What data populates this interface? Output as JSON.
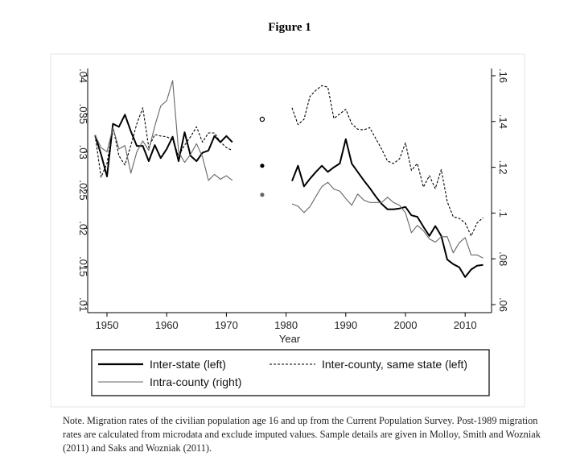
{
  "title": "Figure 1",
  "note": "Note. Migration rates of the civilian population age 16 and up from the Current Population Survey. Post-1989 migration rates are calculated from microdata and exclude imputed values. Sample details are given in Molloy, Smith and Wozniak (2011) and Saks and Wozniak (2011).",
  "chart_data": {
    "type": "line",
    "xlabel": "Year",
    "ylabel_left": "",
    "ylabel_right": "",
    "xlim": [
      1946.8,
      2014.5
    ],
    "ylim_left": [
      0.01,
      0.04
    ],
    "ylim_right": [
      0.06,
      0.16
    ],
    "x_ticks": [
      "1950",
      "1960",
      "1970",
      "1980",
      "1990",
      "2000",
      "2010"
    ],
    "y_ticks_left": [
      ".01",
      ".015",
      ".02",
      ".025",
      ".03",
      ".035",
      ".04"
    ],
    "y_ticks_right": [
      ".06",
      ".08",
      ".1",
      ".12",
      ".14",
      ".16"
    ],
    "grid": false,
    "legend_position": "bottom",
    "series": [
      {
        "name": "Inter-state (left)",
        "axis": "left",
        "style": "solid-thick",
        "color": "#000000",
        "segments": [
          {
            "x": [
              1948,
              1949,
              1950,
              1951,
              1952,
              1953,
              1954,
              1955,
              1956,
              1957,
              1958,
              1959,
              1960,
              1961,
              1962,
              1963,
              1964,
              1965,
              1966,
              1967,
              1968,
              1969,
              1970,
              1971
            ],
            "y": [
              0.0322,
              0.0297,
              0.0268,
              0.0337,
              0.0333,
              0.0349,
              0.0327,
              0.0308,
              0.0308,
              0.0288,
              0.0309,
              0.0292,
              0.0304,
              0.032,
              0.0288,
              0.0326,
              0.0295,
              0.0288,
              0.0299,
              0.0302,
              0.0321,
              0.0313,
              0.0321,
              0.0313
            ]
          },
          {
            "x": [
              1981,
              1982,
              1983,
              1984,
              1985,
              1986,
              1987,
              1988,
              1989,
              1990,
              1991,
              1992,
              1993,
              1994,
              1995,
              1996,
              1997,
              1998,
              1999,
              2000,
              2001,
              2002,
              2003,
              2004,
              2005,
              2006,
              2007,
              2008,
              2009,
              2010,
              2011,
              2012,
              2013
            ],
            "y": [
              0.0262,
              0.0282,
              0.0255,
              0.0265,
              0.0274,
              0.0282,
              0.0274,
              0.028,
              0.0285,
              0.0317,
              0.0285,
              0.0274,
              0.0263,
              0.0253,
              0.0242,
              0.0232,
              0.0225,
              0.0225,
              0.0226,
              0.0228,
              0.0217,
              0.0215,
              0.0202,
              0.019,
              0.0203,
              0.019,
              0.0159,
              0.0153,
              0.0149,
              0.0136,
              0.0146,
              0.0151,
              0.0152
            ]
          }
        ],
        "point": {
          "x": 1976,
          "y": 0.0282,
          "marker": "filled-black"
        }
      },
      {
        "name": "Inter-county, same state (left)",
        "axis": "left",
        "style": "dashed",
        "color": "#000000",
        "segments": [
          {
            "x": [
              1948,
              1949,
              1950,
              1951,
              1952,
              1953,
              1954,
              1955,
              1956,
              1957,
              1958,
              1959,
              1960,
              1961,
              1962,
              1963,
              1964,
              1965,
              1966,
              1967,
              1968,
              1969,
              1970,
              1971
            ],
            "y": [
              0.0322,
              0.0267,
              0.0285,
              0.0333,
              0.0295,
              0.0283,
              0.0309,
              0.0337,
              0.0358,
              0.0306,
              0.0323,
              0.0321,
              0.032,
              0.0316,
              0.0295,
              0.0309,
              0.032,
              0.0333,
              0.0313,
              0.0325,
              0.0325,
              0.0313,
              0.0306,
              0.0302
            ]
          },
          {
            "x": [
              1981,
              1982,
              1983,
              1984,
              1985,
              1986,
              1987,
              1988,
              1989,
              1990,
              1991,
              1992,
              1993,
              1994,
              1995,
              1996,
              1997,
              1998,
              1999,
              2000,
              2001,
              2002,
              2003,
              2004,
              2005,
              2006,
              2007,
              2008,
              2009,
              2010,
              2011,
              2012,
              2013
            ],
            "y": [
              0.0358,
              0.0336,
              0.0343,
              0.0373,
              0.0381,
              0.0387,
              0.0385,
              0.0344,
              0.035,
              0.0356,
              0.0337,
              0.033,
              0.0329,
              0.0332,
              0.0318,
              0.0304,
              0.0288,
              0.0285,
              0.0291,
              0.0312,
              0.0276,
              0.0285,
              0.0254,
              0.0269,
              0.0252,
              0.0277,
              0.0235,
              0.0215,
              0.0213,
              0.0207,
              0.019,
              0.0207,
              0.0214
            ]
          }
        ],
        "point": {
          "x": 1976,
          "y": 0.0343,
          "marker": "hollow-black"
        }
      },
      {
        "name": "Intra-county (right)",
        "axis": "right",
        "style": "solid-thin",
        "color": "#666666",
        "segments": [
          {
            "x": [
              1948,
              1949,
              1950,
              1951,
              1952,
              1953,
              1954,
              1955,
              1956,
              1957,
              1958,
              1959,
              1960,
              1961,
              1962,
              1963,
              1964,
              1965,
              1966,
              1967,
              1968,
              1969,
              1970,
              1971
            ],
            "y": [
              0.1341,
              0.1286,
              0.1268,
              0.1374,
              0.128,
              0.1295,
              0.1174,
              0.1268,
              0.1315,
              0.1274,
              0.138,
              0.1468,
              0.1491,
              0.1579,
              0.1268,
              0.1221,
              0.1257,
              0.1303,
              0.1245,
              0.1143,
              0.1169,
              0.1148,
              0.1163,
              0.1143
            ]
          },
          {
            "x": [
              1981,
              1982,
              1983,
              1984,
              1985,
              1986,
              1987,
              1988,
              1989,
              1990,
              1991,
              1992,
              1993,
              1994,
              1995,
              1996,
              1997,
              1998,
              1999,
              2000,
              2001,
              2002,
              2003,
              2004,
              2005,
              2006,
              2007,
              2008,
              2009,
              2010,
              2011,
              2012,
              2013
            ],
            "y": [
              0.104,
              0.103,
              0.1002,
              0.1028,
              0.1073,
              0.1116,
              0.1134,
              0.1105,
              0.1096,
              0.1063,
              0.1034,
              0.1083,
              0.1057,
              0.1046,
              0.1046,
              0.1046,
              0.1069,
              0.1046,
              0.1034,
              0.1001,
              0.0914,
              0.0946,
              0.0923,
              0.0887,
              0.0873,
              0.0896,
              0.0897,
              0.0826,
              0.087,
              0.0893,
              0.0817,
              0.0817,
              0.0803
            ]
          }
        ],
        "point": {
          "x": 1976,
          "y": 0.108,
          "marker": "filled-gray"
        }
      }
    ]
  }
}
